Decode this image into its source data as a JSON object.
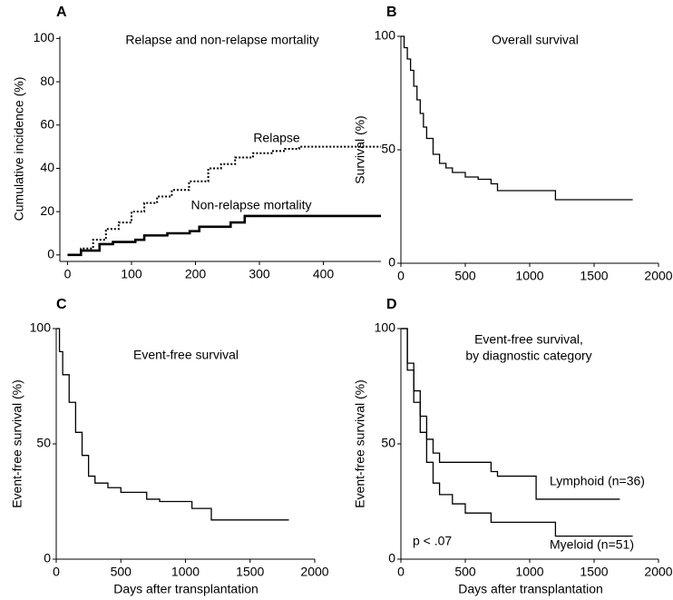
{
  "chart_data": [
    {
      "type": "step",
      "panel": "A",
      "title": "Relapse and non-relapse mortality",
      "ylabel": "Cumulative incidence (%)",
      "xlim": [
        -12,
        490
      ],
      "ylim": [
        -3,
        101
      ],
      "xticks": [
        0,
        100,
        200,
        300,
        400
      ],
      "yticks": [
        0,
        20,
        40,
        60,
        80,
        100
      ],
      "annotations": [
        "Relapse",
        "Non-relapse mortality"
      ],
      "series": [
        {
          "name": "Relapse",
          "color": "#000000",
          "style": "dotted",
          "x": [
            0,
            21,
            40,
            60,
            80,
            100,
            120,
            140,
            163,
            190,
            220,
            240,
            262,
            290,
            319,
            340,
            362,
            490
          ],
          "values": [
            0,
            3,
            7,
            12,
            15,
            20,
            24,
            27,
            30,
            34,
            40,
            42,
            45,
            47,
            48,
            49,
            50,
            50
          ]
        },
        {
          "name": "Non-relapse mortality",
          "color": "#000000",
          "style": "bold",
          "x": [
            0,
            21,
            50,
            71,
            106,
            120,
            156,
            191,
            206,
            255,
            277,
            490
          ],
          "values": [
            0,
            2,
            5,
            6,
            7,
            9,
            10,
            11,
            13,
            15,
            18,
            18
          ]
        }
      ]
    },
    {
      "type": "step",
      "panel": "B",
      "title": "Overall survival",
      "ylabel": "Survival (%)",
      "xlim": [
        0,
        2000
      ],
      "ylim": [
        0,
        100
      ],
      "xticks": [
        0,
        500,
        1000,
        1500,
        2000
      ],
      "yticks": [
        0,
        50,
        100
      ],
      "series": [
        {
          "name": "Overall survival",
          "color": "#000000",
          "style": "solid",
          "x": [
            0,
            25,
            50,
            75,
            100,
            125,
            150,
            175,
            200,
            250,
            300,
            350,
            400,
            500,
            600,
            700,
            750,
            1200,
            1800
          ],
          "values": [
            100,
            95,
            90,
            85,
            78,
            72,
            66,
            60,
            55,
            48,
            44,
            42,
            40,
            38,
            37,
            35,
            32,
            28,
            28
          ]
        }
      ]
    },
    {
      "type": "step",
      "panel": "C",
      "title": "Event-free survival",
      "ylabel": "Event-free survival (%)",
      "xlabel": "Days after transplantation",
      "xlim": [
        0,
        2000
      ],
      "ylim": [
        0,
        100
      ],
      "xticks": [
        0,
        500,
        1000,
        1500,
        2000
      ],
      "yticks": [
        0,
        50,
        100
      ],
      "series": [
        {
          "name": "Event-free survival",
          "color": "#000000",
          "style": "solid",
          "x": [
            0,
            25,
            50,
            100,
            150,
            200,
            250,
            300,
            400,
            500,
            700,
            800,
            1050,
            1200,
            1800
          ],
          "values": [
            100,
            90,
            80,
            68,
            55,
            45,
            36,
            33,
            31,
            29,
            26,
            25,
            22,
            17,
            17
          ]
        }
      ]
    },
    {
      "type": "step",
      "panel": "D",
      "title": "Event-free survival,",
      "subtitle": "by diagnostic category",
      "ylabel": "Event-free survival (%)",
      "xlabel": "Days after transplantation",
      "xlim": [
        0,
        2000
      ],
      "ylim": [
        0,
        100
      ],
      "xticks": [
        0,
        500,
        1000,
        1500,
        2000
      ],
      "yticks": [
        0,
        50,
        100
      ],
      "annotations": [
        "Lymphoid (n=36)",
        "Myeloid (n=51)",
        "p < .07"
      ],
      "series": [
        {
          "name": "Lymphoid (n=36)",
          "color": "#000000",
          "style": "solid",
          "x": [
            0,
            50,
            100,
            150,
            200,
            250,
            300,
            500,
            700,
            750,
            1050,
            1700
          ],
          "values": [
            100,
            85,
            73,
            62,
            52,
            46,
            42,
            42,
            38,
            36,
            26,
            26
          ]
        },
        {
          "name": "Myeloid (n=51)",
          "color": "#000000",
          "style": "solid",
          "x": [
            0,
            50,
            100,
            150,
            200,
            250,
            300,
            400,
            500,
            700,
            1200,
            1800
          ],
          "values": [
            100,
            82,
            68,
            55,
            42,
            33,
            28,
            24,
            20,
            16,
            10,
            10
          ]
        }
      ]
    }
  ]
}
